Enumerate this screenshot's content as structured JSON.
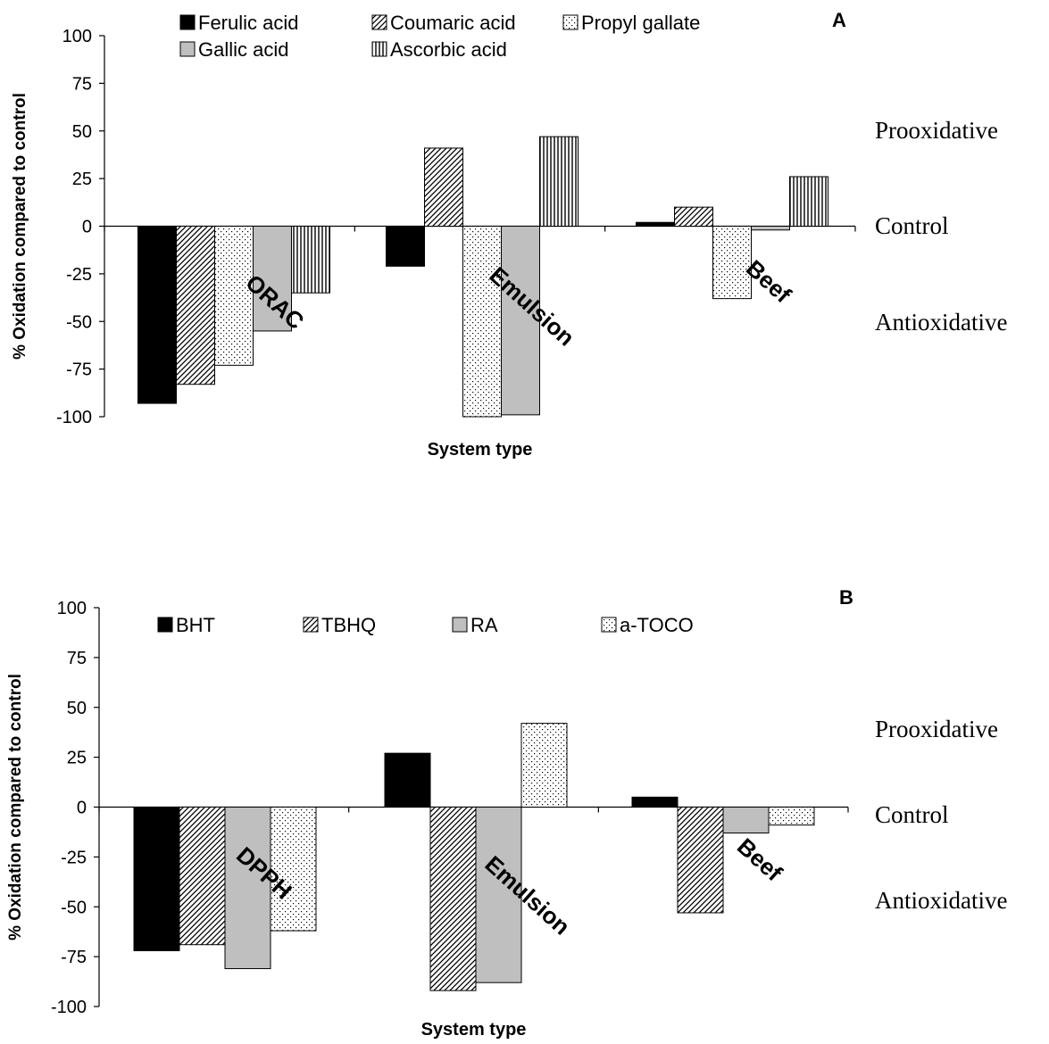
{
  "patterns": {
    "solid-black": "#000000",
    "diagonal-hatch": "#000000",
    "dots": "#000000",
    "gray": "#bfbfbf",
    "vertical-lines": "#000000"
  },
  "chart_data": [
    {
      "type": "bar",
      "panel_label": "A",
      "title": "",
      "xlabel": "System type",
      "ylabel": "% Oxidation compared to control",
      "ylim": [
        -100,
        100
      ],
      "yticks": [
        100,
        75,
        50,
        25,
        0,
        -25,
        -50,
        -75,
        -100
      ],
      "categories": [
        "ORAC",
        "Emulsion",
        "Beef"
      ],
      "series": [
        {
          "name": "Ferulic acid",
          "pattern": "solid-black",
          "values": [
            -93,
            -21,
            2
          ]
        },
        {
          "name": "Coumaric acid",
          "pattern": "diagonal-hatch",
          "values": [
            -83,
            41,
            10
          ]
        },
        {
          "name": "Propyl gallate",
          "pattern": "dots",
          "values": [
            -73,
            -100,
            -38
          ]
        },
        {
          "name": "Gallic acid",
          "pattern": "gray",
          "values": [
            -55,
            -99,
            -2
          ]
        },
        {
          "name": "Ascorbic acid",
          "pattern": "vertical-lines",
          "values": [
            -35,
            47,
            26
          ]
        }
      ],
      "right_annotations": [
        "Prooxidative",
        "Control",
        "Antioxidative"
      ],
      "legend_position": "top"
    },
    {
      "type": "bar",
      "panel_label": "B",
      "title": "",
      "xlabel": "System type",
      "ylabel": "% Oxidation compared to control",
      "ylim": [
        -100,
        100
      ],
      "yticks": [
        100,
        75,
        50,
        25,
        0,
        -25,
        -50,
        -75,
        -100
      ],
      "categories": [
        "DPPH",
        "Emulsion",
        "Beef"
      ],
      "series": [
        {
          "name": "BHT",
          "pattern": "solid-black",
          "values": [
            -72,
            27,
            5
          ]
        },
        {
          "name": "TBHQ",
          "pattern": "diagonal-hatch",
          "values": [
            -69,
            -92,
            -53
          ]
        },
        {
          "name": "RA",
          "pattern": "gray",
          "values": [
            -81,
            -88,
            -13
          ]
        },
        {
          "name": "a-TOCO",
          "pattern": "dots",
          "values": [
            -62,
            42,
            -9
          ]
        }
      ],
      "right_annotations": [
        "Prooxidative",
        "Control",
        "Antioxidative"
      ],
      "legend_position": "top"
    }
  ]
}
